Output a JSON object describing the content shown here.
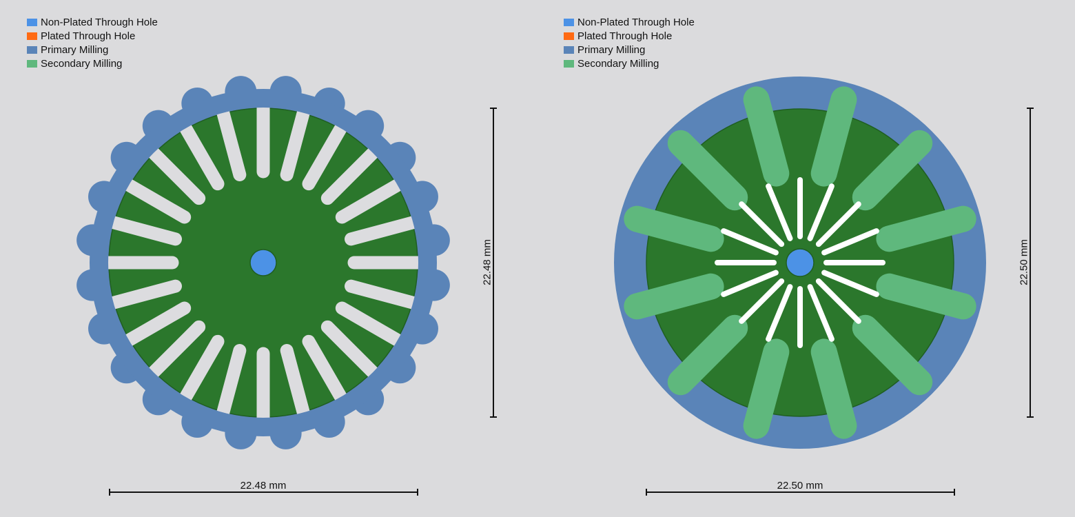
{
  "colors": {
    "background": "#dbdbdd",
    "non_plated": "#4c92e6",
    "plated": "#ff6a13",
    "primary_milling": "#5a84b8",
    "secondary_milling": "#5fb87d",
    "board": "#2b772c",
    "board_edge": "#1f5e21",
    "slot_left": "#dcdcdf",
    "slot_right": "#ffffff",
    "dim_line": "#111111"
  },
  "legend_left": {
    "items": [
      {
        "label": "Non-Plated Through Hole",
        "color": "#4c92e6"
      },
      {
        "label": "Plated Through Hole",
        "color": "#ff6a13"
      },
      {
        "label": "Primary Milling",
        "color": "#5a84b8"
      },
      {
        "label": "Secondary Milling",
        "color": "#5fb87d"
      }
    ]
  },
  "legend_right": {
    "items": [
      {
        "label": "Non-Plated Through Hole",
        "color": "#4c92e6"
      },
      {
        "label": "Plated Through Hole",
        "color": "#ff6a13"
      },
      {
        "label": "Primary Milling",
        "color": "#5a84b8"
      },
      {
        "label": "Secondary Milling",
        "color": "#5fb87d"
      }
    ]
  },
  "left_board": {
    "width_label": "22.48 mm",
    "height_label": "22.48 mm",
    "slot_count": 24,
    "notch_count": 24
  },
  "right_board": {
    "width_label": "22.50 mm",
    "height_label": "22.50 mm",
    "slot_count": 16,
    "lobe_count": 12
  }
}
